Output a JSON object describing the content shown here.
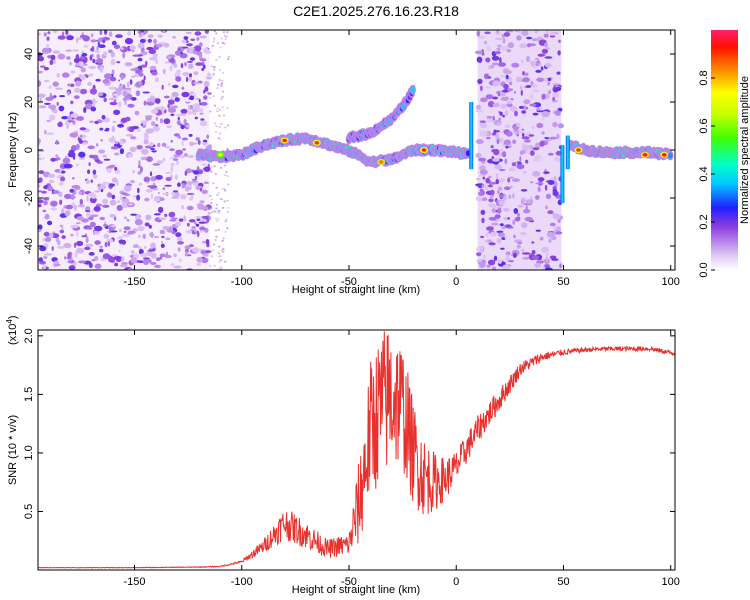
{
  "title": "C2E1.2025.276.16.23.R18",
  "spectrogram": {
    "xlabel": "Height of straight line (km)",
    "ylabel": "Frequency (Hz)",
    "xlim": [
      -195,
      102
    ],
    "ylim": [
      -50,
      50
    ],
    "xticks": [
      -150,
      -100,
      -50,
      0,
      50,
      100
    ],
    "yticks": [
      -40,
      -20,
      0,
      20,
      40
    ],
    "xtick_labels": [
      "-150",
      "-100",
      "-50",
      "0",
      "50",
      "100"
    ],
    "ytick_labels": [
      "-40",
      "-20",
      "0",
      "20",
      "40"
    ],
    "noise_regions": [
      {
        "x0": -195,
        "x1": -115,
        "y0": -50,
        "y1": 50
      },
      {
        "x0": 10,
        "x1": 49,
        "y0": -50,
        "y1": 50
      }
    ],
    "ridge_main": [
      [
        -120,
        -2
      ],
      [
        -110,
        -3
      ],
      [
        -100,
        -2
      ],
      [
        -90,
        2
      ],
      [
        -80,
        4
      ],
      [
        -70,
        5
      ],
      [
        -62,
        3
      ],
      [
        -55,
        1
      ],
      [
        -48,
        -1
      ],
      [
        -40,
        -5
      ],
      [
        -30,
        -4
      ],
      [
        -20,
        0
      ],
      [
        -10,
        0
      ],
      [
        0,
        -1
      ],
      [
        6,
        -2
      ]
    ],
    "ridge_branch": [
      [
        -50,
        5
      ],
      [
        -40,
        7
      ],
      [
        -35,
        10
      ],
      [
        -30,
        13
      ],
      [
        -25,
        18
      ],
      [
        -20,
        25
      ]
    ],
    "ridge_right": [
      [
        53,
        2
      ],
      [
        60,
        0
      ],
      [
        70,
        -1
      ],
      [
        80,
        -1
      ],
      [
        90,
        -1
      ],
      [
        100,
        -2
      ]
    ],
    "peaks": [
      {
        "x": -110,
        "y": -2,
        "a": 0.75
      },
      {
        "x": -80,
        "y": 4,
        "a": 0.95
      },
      {
        "x": -65,
        "y": 3,
        "a": 0.9
      },
      {
        "x": -35,
        "y": -5,
        "a": 0.85
      },
      {
        "x": -15,
        "y": 0,
        "a": 0.92
      },
      {
        "x": 57,
        "y": 0,
        "a": 0.9
      },
      {
        "x": 88,
        "y": -2,
        "a": 0.97
      },
      {
        "x": 97,
        "y": -2,
        "a": 0.95
      }
    ]
  },
  "colorbar": {
    "label": "Normalized spectral amplitude",
    "ticks": [
      0.0,
      0.2,
      0.4,
      0.6,
      0.8
    ],
    "tick_labels": [
      "0.0",
      "0.2",
      "0.4",
      "0.6",
      "0.8"
    ],
    "range": [
      0,
      1
    ]
  },
  "chart_data": {
    "type": "line",
    "title": "C2E1.2025.276.16.23.R18",
    "xlabel": "Height of straight line (km)",
    "ylabel": "SNR (10 * v/v)",
    "yscale_label": "(x10^4)",
    "scale_base": "x10",
    "scale_exp": "4",
    "xlim": [
      -195,
      102
    ],
    "ylim": [
      0,
      2.05
    ],
    "xticks": [
      -150,
      -100,
      -50,
      0,
      50,
      100
    ],
    "yticks": [
      0.5,
      1.0,
      1.5,
      2.0
    ],
    "xtick_labels": [
      "-150",
      "-100",
      "-50",
      "0",
      "50",
      "100"
    ],
    "ytick_labels": [
      "0.5",
      "1.0",
      "1.5",
      "2.0"
    ],
    "color": "#e8302c",
    "series": [
      {
        "name": "SNR",
        "envelope_x": [
          -195,
          -150,
          -120,
          -110,
          -100,
          -90,
          -80,
          -70,
          -60,
          -50,
          -45,
          -40,
          -35,
          -30,
          -25,
          -20,
          -15,
          -10,
          -5,
          0,
          10,
          20,
          30,
          40,
          50,
          60,
          70,
          80,
          90,
          102
        ],
        "envelope_y": [
          0.02,
          0.02,
          0.025,
          0.03,
          0.07,
          0.2,
          0.4,
          0.3,
          0.18,
          0.22,
          0.6,
          1.2,
          1.4,
          1.5,
          1.4,
          1.0,
          0.8,
          0.75,
          0.78,
          0.88,
          1.2,
          1.45,
          1.72,
          1.82,
          1.86,
          1.88,
          1.89,
          1.89,
          1.89,
          1.85
        ],
        "noise_amplitude": [
          0.002,
          0.002,
          0.003,
          0.004,
          0.01,
          0.06,
          0.14,
          0.12,
          0.08,
          0.1,
          0.4,
          0.6,
          0.65,
          0.65,
          0.55,
          0.45,
          0.35,
          0.25,
          0.18,
          0.14,
          0.12,
          0.1,
          0.06,
          0.04,
          0.025,
          0.02,
          0.02,
          0.02,
          0.02,
          0.02
        ]
      }
    ]
  }
}
